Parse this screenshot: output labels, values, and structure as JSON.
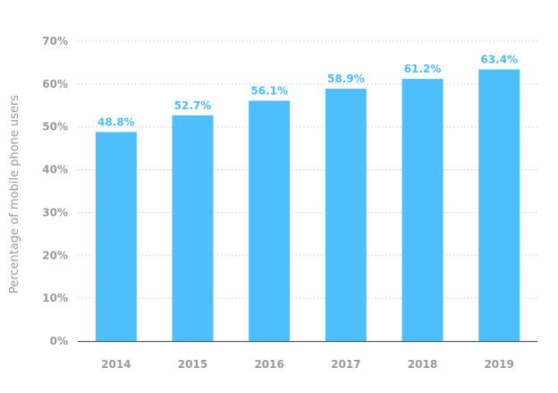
{
  "colors": {
    "bar": "#4fbffb",
    "data_label": "#4cbcf9",
    "tick_label": "#9a9a9a",
    "grid": "#cfcfcf",
    "baseline": "#5a5a5a"
  },
  "chart_data": {
    "type": "bar",
    "categories": [
      "2014",
      "2015",
      "2016",
      "2017",
      "2018",
      "2019"
    ],
    "values": [
      48.8,
      52.7,
      56.1,
      58.9,
      61.2,
      63.4
    ],
    "data_labels": [
      "48.8%",
      "52.7%",
      "56.1%",
      "58.9%",
      "61.2%",
      "63.4%"
    ],
    "ylabel": "Percentage of mobile phone users",
    "xlabel": "",
    "ylim": [
      0,
      70
    ],
    "yticks": [
      0,
      10,
      20,
      30,
      40,
      50,
      60,
      70
    ],
    "ytick_labels": [
      "0%",
      "10%",
      "20%",
      "30%",
      "40%",
      "50%",
      "60%",
      "70%"
    ],
    "grid": true,
    "grid_style": "dotted",
    "legend": "none"
  }
}
